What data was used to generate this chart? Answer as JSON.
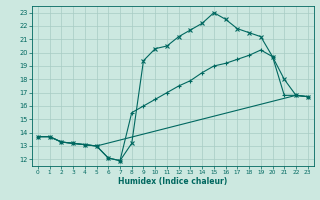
{
  "xlabel": "Humidex (Indice chaleur)",
  "bg_color": "#cce8e0",
  "line_color": "#006860",
  "grid_color": "#a8ccc4",
  "xlim": [
    -0.5,
    23.5
  ],
  "ylim": [
    11.5,
    23.5
  ],
  "xticks": [
    0,
    1,
    2,
    3,
    4,
    5,
    6,
    7,
    8,
    9,
    10,
    11,
    12,
    13,
    14,
    15,
    16,
    17,
    18,
    19,
    20,
    21,
    22,
    23
  ],
  "yticks": [
    12,
    13,
    14,
    15,
    16,
    17,
    18,
    19,
    20,
    21,
    22,
    23
  ],
  "line1_x": [
    0,
    1,
    2,
    3,
    4,
    5,
    6,
    7,
    8,
    9,
    10,
    11,
    12,
    13,
    14,
    15,
    16,
    17,
    18,
    19,
    20,
    21,
    22,
    23
  ],
  "line1_y": [
    13.7,
    13.7,
    13.3,
    13.2,
    13.1,
    13.0,
    12.1,
    11.9,
    13.2,
    19.4,
    20.3,
    20.5,
    21.2,
    21.7,
    22.2,
    23.0,
    22.5,
    21.8,
    21.5,
    21.2,
    19.7,
    18.0,
    16.8,
    16.7
  ],
  "line2_x": [
    0,
    1,
    2,
    3,
    4,
    5,
    6,
    7,
    8,
    9,
    10,
    11,
    12,
    13,
    14,
    15,
    16,
    17,
    18,
    19,
    20,
    21,
    22,
    23
  ],
  "line2_y": [
    13.7,
    13.7,
    13.3,
    13.2,
    13.1,
    13.0,
    12.1,
    11.9,
    15.5,
    16.0,
    16.5,
    17.0,
    17.5,
    17.9,
    18.5,
    19.0,
    19.2,
    19.5,
    19.8,
    20.2,
    19.7,
    16.8,
    16.8,
    16.7
  ],
  "line3_x": [
    0,
    1,
    2,
    3,
    4,
    5,
    22,
    23
  ],
  "line3_y": [
    13.7,
    13.7,
    13.3,
    13.2,
    13.1,
    13.0,
    16.8,
    16.7
  ]
}
